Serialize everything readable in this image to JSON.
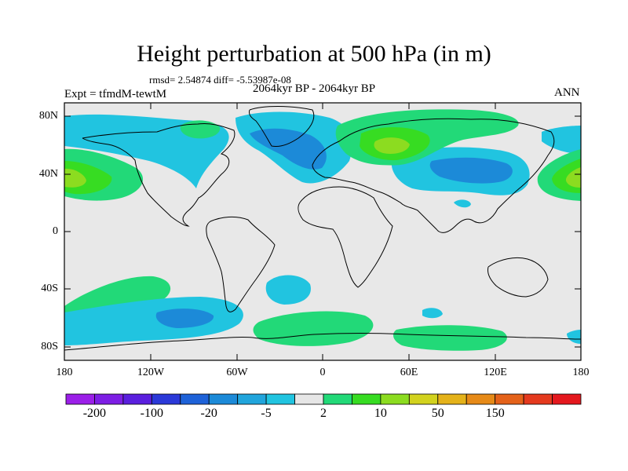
{
  "title": "Height perturbation at 500 hPa (in m)",
  "stats": "rmsd= 2.54874 diff= -5.53987e-08",
  "period": "2064kyr BP - 2064kyr BP",
  "experiment": "Expt = tfmdM-tewtM",
  "season": "ANN",
  "lat_labels": [
    "80N",
    "40N",
    "0",
    "40S",
    "80S"
  ],
  "lon_labels": [
    "180",
    "120W",
    "60W",
    "0",
    "60E",
    "120E",
    "180"
  ],
  "colorbar": {
    "colors": [
      "#9b1fe8",
      "#7d1ee4",
      "#5a1fde",
      "#2b39d8",
      "#1e62d8",
      "#1c8ad8",
      "#21a5dc",
      "#21c4e0",
      "#e6e6e6",
      "#22d978",
      "#37dc22",
      "#8cdc20",
      "#d2d21e",
      "#e4b21a",
      "#e68a18",
      "#e4621a",
      "#e43a1e",
      "#e4181e"
    ],
    "labels": [
      "-200",
      "-100",
      "-20",
      "-5",
      "2",
      "10",
      "50",
      "150"
    ]
  }
}
